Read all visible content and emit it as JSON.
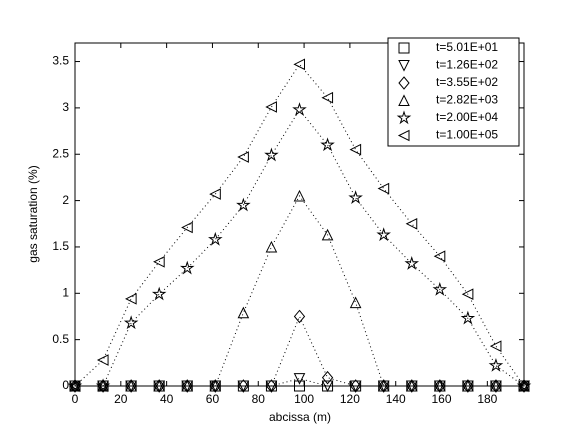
{
  "chart_data": {
    "type": "line",
    "x_label": "abcissa (m)",
    "y_label": "gas saturation (%)",
    "x": [
      0,
      12.25,
      24.5,
      36.75,
      49,
      61.25,
      73.5,
      85.75,
      98,
      110.25,
      122.5,
      134.75,
      147,
      159.25,
      171.5,
      183.75,
      196
    ],
    "xlim": [
      0,
      196
    ],
    "xticks": [
      0,
      20,
      40,
      60,
      80,
      100,
      120,
      140,
      160,
      180
    ],
    "ylim": [
      0,
      3.7
    ],
    "yticks": [
      0,
      0.5,
      1,
      1.5,
      2,
      2.5,
      3,
      3.5
    ],
    "grid": false,
    "legend": "top-right",
    "line_style": "dotted",
    "series": [
      {
        "name": "t=5.01E+01",
        "color": "#000000",
        "marker": "square",
        "values": [
          0,
          0,
          0,
          0,
          0,
          0,
          0,
          0,
          0,
          0,
          0,
          0,
          0,
          0,
          0,
          0,
          0
        ]
      },
      {
        "name": "t=1.26E+02",
        "color": "#000000",
        "marker": "triangle-down",
        "values": [
          0,
          0,
          0,
          0,
          0,
          0,
          0,
          0,
          0.08,
          0,
          0,
          0,
          0,
          0,
          0,
          0,
          0
        ]
      },
      {
        "name": "t=3.55E+02",
        "color": "#000000",
        "marker": "diamond",
        "values": [
          0,
          0,
          0,
          0,
          0,
          0,
          0,
          0,
          0.75,
          0.09,
          0,
          0,
          0,
          0,
          0,
          0,
          0
        ]
      },
      {
        "name": "t=2.82E+03",
        "color": "#000000",
        "marker": "triangle-up",
        "values": [
          0,
          0,
          0,
          0,
          0,
          0,
          0.79,
          1.5,
          2.05,
          1.63,
          0.9,
          0,
          0,
          0,
          0,
          0,
          0
        ]
      },
      {
        "name": "t=2.00E+04",
        "color": "#000000",
        "marker": "star",
        "values": [
          0,
          0,
          0.68,
          0.99,
          1.27,
          1.58,
          1.95,
          2.49,
          2.98,
          2.6,
          2.03,
          1.63,
          1.32,
          1.04,
          0.73,
          0.22,
          0
        ]
      },
      {
        "name": "t=1.00E+05",
        "color": "#000000",
        "marker": "triangle-left",
        "values": [
          0,
          0.28,
          0.94,
          1.34,
          1.71,
          2.07,
          2.47,
          3.01,
          3.47,
          3.11,
          2.55,
          2.13,
          1.75,
          1.4,
          0.99,
          0.43,
          0
        ]
      }
    ]
  }
}
